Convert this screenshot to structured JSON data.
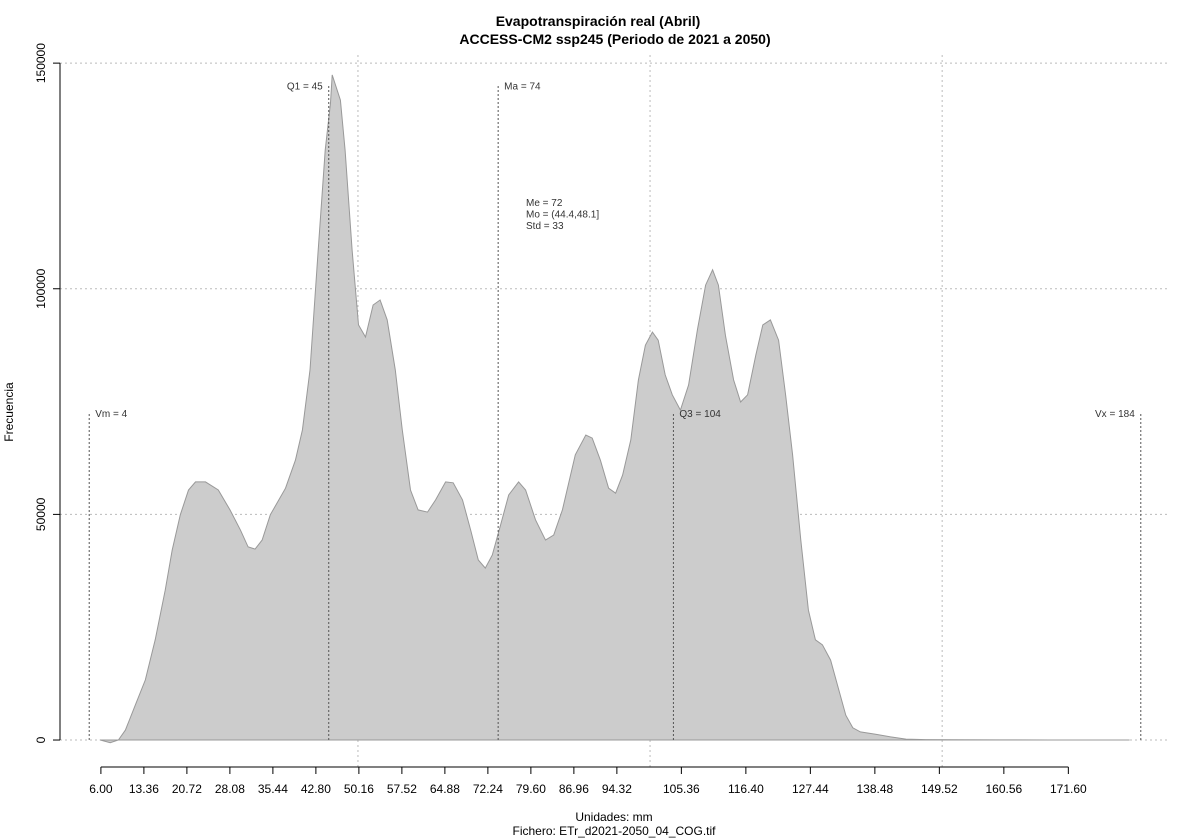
{
  "chart_data": {
    "type": "area",
    "title": "Evapotranspiración real (Abril)",
    "subtitle": "ACCESS-CM2 ssp245 (Periodo de 2021 a 2050)",
    "xlabel": "Unidades: mm",
    "caption": "Fichero: ETr_d2021-2050_04_COG.tif",
    "ylabel": "Frecuencia",
    "color": "#cccccc",
    "line_color": "#999999",
    "xlim": [
      -1,
      189
    ],
    "ylim": [
      -6200,
      151800
    ],
    "yticks": [
      0,
      50000,
      100000,
      150000
    ],
    "xticks": [
      {
        "value": 6,
        "label": "6.00"
      },
      {
        "value": 13.36,
        "label": "13.36"
      },
      {
        "value": 20.72,
        "label": "20.72"
      },
      {
        "value": 28.08,
        "label": "28.08"
      },
      {
        "value": 35.44,
        "label": "35.44"
      },
      {
        "value": 42.8,
        "label": "42.80"
      },
      {
        "value": 50.16,
        "label": "50.16"
      },
      {
        "value": 57.52,
        "label": "57.52"
      },
      {
        "value": 64.88,
        "label": "64.88"
      },
      {
        "value": 72.24,
        "label": "72.24"
      },
      {
        "value": 79.6,
        "label": "79.60"
      },
      {
        "value": 86.96,
        "label": "86.96"
      },
      {
        "value": 94.32,
        "label": "94.32"
      },
      {
        "value": 105.36,
        "label": "105.36"
      },
      {
        "value": 116.4,
        "label": "116.40"
      },
      {
        "value": 127.44,
        "label": "127.44"
      },
      {
        "value": 138.48,
        "label": "138.48"
      },
      {
        "value": 149.52,
        "label": "149.52"
      },
      {
        "value": 160.56,
        "label": "160.56"
      },
      {
        "value": 171.6,
        "label": "171.60"
      }
    ],
    "xgrid": [
      50,
      100,
      150
    ],
    "grid": true,
    "x": [
      5.9,
      7.6,
      9.0,
      10.2,
      11.9,
      13.6,
      15.3,
      17.0,
      18.2,
      19.6,
      21.0,
      22.2,
      23.9,
      26.1,
      28.1,
      29.9,
      31.2,
      32.4,
      33.6,
      35.0,
      37.6,
      39.3,
      40.5,
      41.8,
      43.2,
      44.4,
      45.3,
      45.6,
      47.0,
      47.8,
      49.0,
      50.1,
      51.3,
      52.6,
      53.8,
      55.0,
      56.4,
      57.6,
      59.0,
      60.3,
      61.9,
      63.3,
      65.0,
      66.3,
      67.9,
      69.3,
      70.6,
      71.8,
      73.0,
      74.4,
      75.8,
      77.5,
      78.7,
      80.4,
      82.1,
      83.5,
      85.0,
      87.2,
      89.0,
      90.1,
      91.5,
      92.9,
      94.1,
      95.3,
      96.7,
      98.0,
      99.2,
      100.4,
      101.4,
      102.6,
      103.8,
      105.2,
      106.6,
      108.1,
      109.5,
      110.7,
      111.7,
      112.9,
      114.3,
      115.5,
      116.7,
      118.1,
      119.3,
      120.6,
      122.0,
      123.2,
      124.4,
      125.8,
      127.1,
      128.3,
      129.5,
      130.9,
      132.3,
      133.5,
      134.7,
      136.0,
      138.6,
      141.2,
      143.8,
      147.2,
      153.2,
      160,
      168.6,
      182
    ],
    "values": [
      0,
      -600,
      0,
      2200,
      7800,
      13300,
      22200,
      33200,
      42100,
      49900,
      55400,
      57200,
      57200,
      55400,
      51000,
      46500,
      42800,
      42300,
      44300,
      49900,
      55800,
      62000,
      68700,
      82000,
      108600,
      130700,
      141200,
      147400,
      141800,
      130700,
      108600,
      92000,
      89300,
      96400,
      97500,
      93100,
      82000,
      68700,
      55400,
      51000,
      50500,
      53200,
      57200,
      57000,
      53200,
      46500,
      39900,
      38100,
      41000,
      47600,
      54300,
      57200,
      55400,
      48800,
      44300,
      45400,
      51000,
      63200,
      67600,
      66900,
      62000,
      55800,
      54700,
      58700,
      66500,
      79800,
      87500,
      90400,
      88600,
      80900,
      76500,
      73100,
      78700,
      90900,
      100800,
      104200,
      100800,
      89700,
      79800,
      74900,
      76500,
      85300,
      92000,
      93100,
      88600,
      76500,
      63200,
      44300,
      28800,
      22200,
      21100,
      17700,
      11100,
      5500,
      2700,
      1800,
      1300,
      700,
      200,
      100,
      50,
      20,
      10,
      0
    ],
    "annotations": [
      {
        "label": "Vm = 4",
        "x": 4,
        "top": 72500,
        "side": "right"
      },
      {
        "label": "Q1 = 45",
        "x": 45,
        "top": 145000,
        "side": "left"
      },
      {
        "label": "Ma = 74",
        "x": 74,
        "top": 145000,
        "side": "right"
      },
      {
        "label": "Q3 = 104",
        "x": 104,
        "top": 72500,
        "side": "right"
      },
      {
        "label": "Vx = 184",
        "x": 184,
        "top": 72500,
        "side": "left"
      }
    ],
    "stats": [
      "Me = 72",
      "Mo = (44.4,48.1]",
      "Std = 33"
    ]
  }
}
